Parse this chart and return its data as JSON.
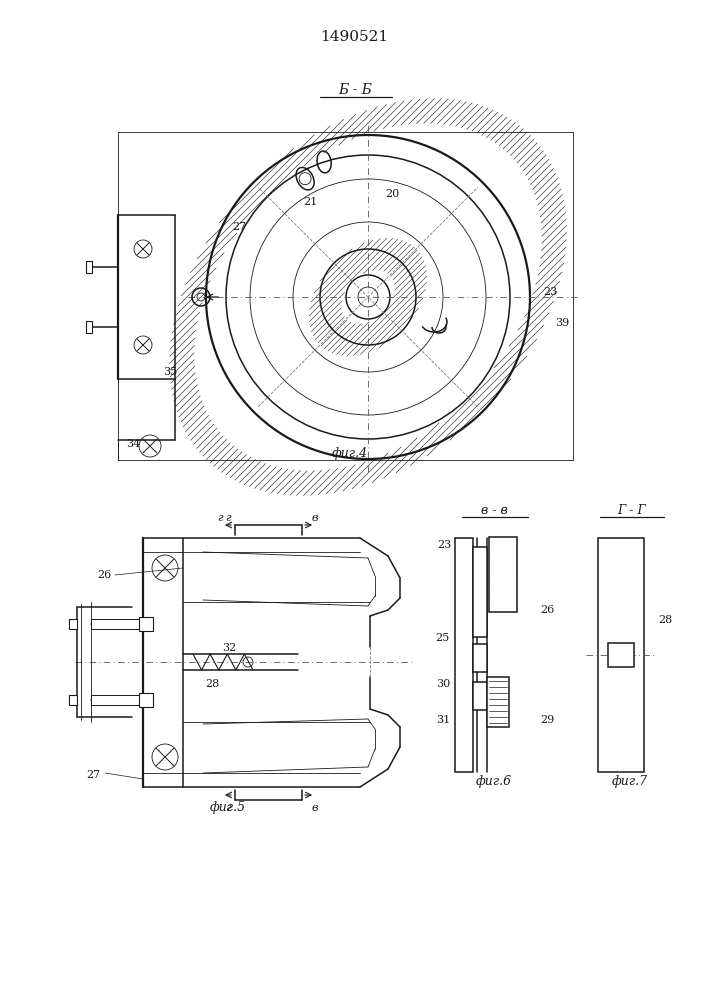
{
  "title": "1490521",
  "bg": "#ffffff",
  "lc": "#1a1a1a",
  "hc": "#3a3a3a",
  "fig4_label": "фиг.4",
  "fig5_label": "фиг.5",
  "fig6_label": "фиг.6",
  "fig7_label": "фиг.7",
  "bb_label": "Б - Б",
  "vv_label": "в - в",
  "gg_label": "Г - Г"
}
